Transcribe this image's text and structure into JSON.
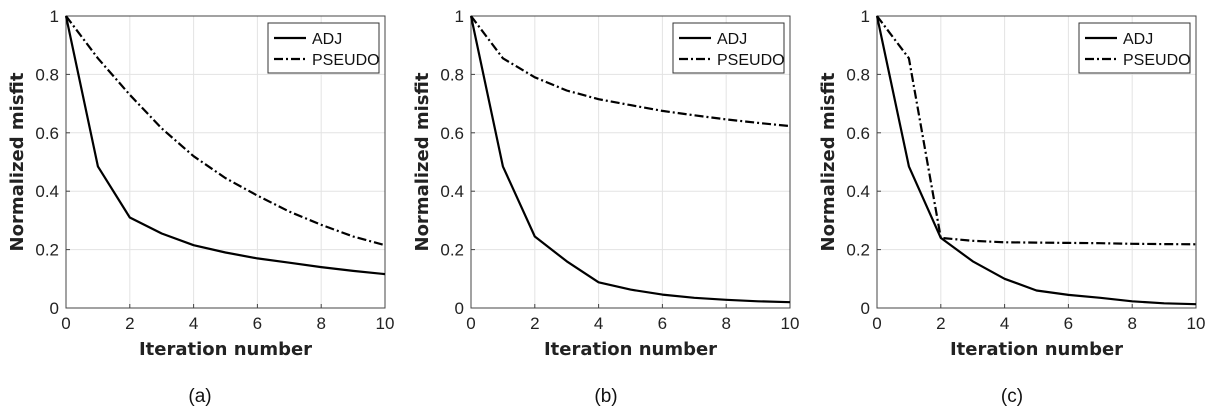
{
  "chart_data": [
    {
      "type": "line",
      "caption": "(a)",
      "xlabel": "Iteration number",
      "ylabel": "Normalized misfit",
      "xlim": [
        0,
        10
      ],
      "ylim": [
        0,
        1
      ],
      "xticks": [
        "0",
        "2",
        "4",
        "6",
        "8",
        "10"
      ],
      "yticks": [
        "0",
        "0.2",
        "0.4",
        "0.6",
        "0.8",
        "1"
      ],
      "grid": true,
      "legend_position": "top-right",
      "x": [
        0,
        1,
        2,
        3,
        4,
        5,
        6,
        7,
        8,
        9,
        10
      ],
      "series": [
        {
          "name": "ADJ",
          "style": "solid",
          "color": "#000000",
          "values": [
            1.0,
            0.485,
            0.31,
            0.255,
            0.215,
            0.19,
            0.17,
            0.155,
            0.14,
            0.127,
            0.116
          ]
        },
        {
          "name": "PSEUDO",
          "style": "dashdot",
          "color": "#000000",
          "values": [
            1.0,
            0.855,
            0.73,
            0.615,
            0.52,
            0.445,
            0.385,
            0.33,
            0.285,
            0.245,
            0.215
          ]
        }
      ]
    },
    {
      "type": "line",
      "caption": "(b)",
      "xlabel": "Iteration number",
      "ylabel": "Normalized misfit",
      "xlim": [
        0,
        10
      ],
      "ylim": [
        0,
        1
      ],
      "xticks": [
        "0",
        "2",
        "4",
        "6",
        "8",
        "10"
      ],
      "yticks": [
        "0",
        "0.2",
        "0.4",
        "0.6",
        "0.8",
        "1"
      ],
      "grid": true,
      "legend_position": "top-right",
      "x": [
        0,
        1,
        2,
        3,
        4,
        5,
        6,
        7,
        8,
        9,
        10
      ],
      "series": [
        {
          "name": "ADJ",
          "style": "solid",
          "color": "#000000",
          "values": [
            1.0,
            0.485,
            0.245,
            0.16,
            0.088,
            0.063,
            0.046,
            0.035,
            0.028,
            0.023,
            0.02
          ]
        },
        {
          "name": "PSEUDO",
          "style": "dashdot",
          "color": "#000000",
          "values": [
            1.0,
            0.855,
            0.79,
            0.745,
            0.715,
            0.695,
            0.675,
            0.66,
            0.646,
            0.634,
            0.623
          ]
        }
      ]
    },
    {
      "type": "line",
      "caption": "(c)",
      "xlabel": "Iteration number",
      "ylabel": "Normalized misfit",
      "xlim": [
        0,
        10
      ],
      "ylim": [
        0,
        1
      ],
      "xticks": [
        "0",
        "2",
        "4",
        "6",
        "8",
        "10"
      ],
      "yticks": [
        "0",
        "0.2",
        "0.4",
        "0.6",
        "0.8",
        "1"
      ],
      "grid": true,
      "legend_position": "top-right",
      "x": [
        0,
        1,
        2,
        3,
        4,
        5,
        6,
        7,
        8,
        9,
        10
      ],
      "series": [
        {
          "name": "ADJ",
          "style": "solid",
          "color": "#000000",
          "values": [
            1.0,
            0.485,
            0.24,
            0.16,
            0.1,
            0.06,
            0.045,
            0.035,
            0.023,
            0.016,
            0.013
          ]
        },
        {
          "name": "PSEUDO",
          "style": "dashdot",
          "color": "#000000",
          "values": [
            1.0,
            0.855,
            0.24,
            0.23,
            0.225,
            0.224,
            0.223,
            0.222,
            0.22,
            0.219,
            0.218
          ]
        }
      ]
    }
  ]
}
